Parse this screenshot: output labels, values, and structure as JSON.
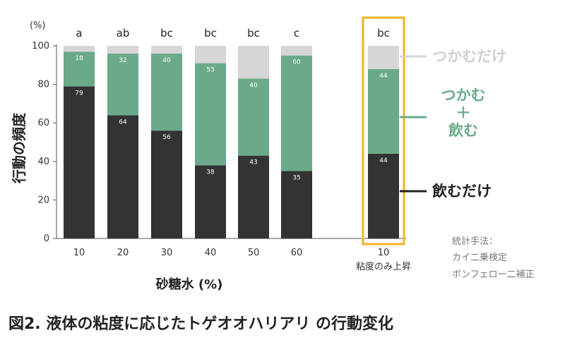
{
  "caption": "図2. 液体の粘度に応じたトゲオオハリアリ の行動変化",
  "stat_note": [
    "統計手法：",
    "カイ二乗検定",
    "ボンフェロー二補正"
  ],
  "legend": {
    "grasp_only": "つかむだけ",
    "grasp_and_drink": [
      "つかむ",
      "＋",
      "飲む"
    ],
    "drink_only": "飲むだけ"
  },
  "colors": {
    "drink_only": "#333333",
    "grasp_and_drink": "#6aaa8a",
    "grasp_only": "#d6d6d6",
    "highlight": "#f0b323"
  },
  "chart_data": {
    "type": "bar",
    "stacked": true,
    "xlabel": "砂糖水 (%)",
    "ylabel": "行動の頻度",
    "y_unit": "(%)",
    "ylim": [
      0,
      100
    ],
    "yticks": [
      0,
      20,
      40,
      60,
      80,
      100
    ],
    "categories": [
      "10",
      "20",
      "30",
      "40",
      "50",
      "60",
      "10"
    ],
    "category_sublabels": [
      "",
      "",
      "",
      "",
      "",
      "",
      "粘度のみ上昇"
    ],
    "significance_letters": [
      "a",
      "ab",
      "bc",
      "bc",
      "bc",
      "c",
      "bc"
    ],
    "highlighted_category_index": 6,
    "series": [
      {
        "name": "飲むだけ",
        "values": [
          79,
          64,
          56,
          38,
          43,
          35,
          44
        ]
      },
      {
        "name": "つかむ＋飲む",
        "values": [
          18,
          32,
          40,
          53,
          40,
          60,
          44
        ]
      },
      {
        "name": "つかむだけ",
        "values": [
          3,
          4,
          4,
          9,
          17,
          5,
          12
        ]
      }
    ],
    "data_labels": {
      "drink_only": [
        79,
        64,
        56,
        38,
        43,
        35,
        44
      ],
      "grasp_and_drink": [
        18,
        32,
        40,
        53,
        40,
        60,
        44
      ]
    }
  }
}
